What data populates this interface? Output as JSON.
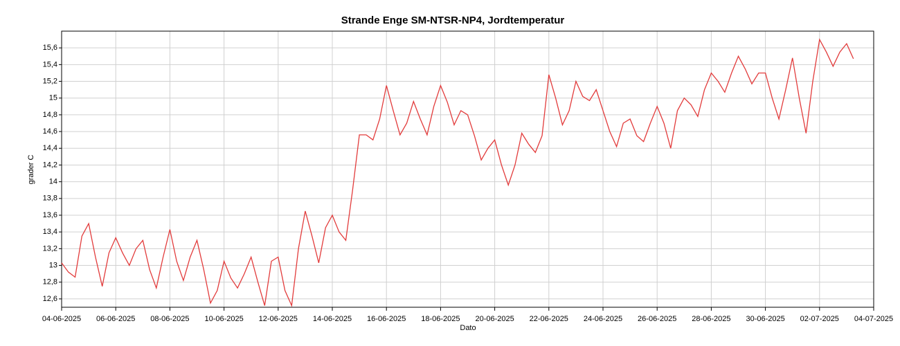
{
  "chart_data": {
    "type": "line",
    "title": "Strande Enge SM-NTSR-NP4, Jordtemperatur",
    "xlabel": "Dato",
    "ylabel": "grader C",
    "grid": true,
    "xlim": [
      "2025-06-04T00:00",
      "2025-07-04T00:00"
    ],
    "xticks": [
      {
        "value": "2025-06-04T00:00",
        "label": "04-06-2025"
      },
      {
        "value": "2025-06-06T00:00",
        "label": "06-06-2025"
      },
      {
        "value": "2025-06-08T00:00",
        "label": "08-06-2025"
      },
      {
        "value": "2025-06-10T00:00",
        "label": "10-06-2025"
      },
      {
        "value": "2025-06-12T00:00",
        "label": "12-06-2025"
      },
      {
        "value": "2025-06-14T00:00",
        "label": "14-06-2025"
      },
      {
        "value": "2025-06-16T00:00",
        "label": "16-06-2025"
      },
      {
        "value": "2025-06-18T00:00",
        "label": "18-06-2025"
      },
      {
        "value": "2025-06-20T00:00",
        "label": "20-06-2025"
      },
      {
        "value": "2025-06-22T00:00",
        "label": "22-06-2025"
      },
      {
        "value": "2025-06-24T00:00",
        "label": "24-06-2025"
      },
      {
        "value": "2025-06-26T00:00",
        "label": "26-06-2025"
      },
      {
        "value": "2025-06-28T00:00",
        "label": "28-06-2025"
      },
      {
        "value": "2025-06-30T00:00",
        "label": "30-06-2025"
      },
      {
        "value": "2025-07-02T00:00",
        "label": "02-07-2025"
      },
      {
        "value": "2025-07-04T00:00",
        "label": "04-07-2025"
      }
    ],
    "ylim": [
      12.5,
      15.8
    ],
    "yticks": [
      {
        "value": 12.6,
        "label": "12,6"
      },
      {
        "value": 12.8,
        "label": "12,8"
      },
      13,
      {
        "value": 13.2,
        "label": "13,2"
      },
      {
        "value": 13.4,
        "label": "13,4"
      },
      {
        "value": 13.6,
        "label": "13,6"
      },
      {
        "value": 13.8,
        "label": "13,8"
      },
      14,
      {
        "value": 14.2,
        "label": "14,2"
      },
      {
        "value": 14.4,
        "label": "14,4"
      },
      {
        "value": 14.6,
        "label": "14,6"
      },
      {
        "value": 14.8,
        "label": "14,8"
      },
      15,
      {
        "value": 15.2,
        "label": "15,2"
      },
      {
        "value": 15.4,
        "label": "15,4"
      },
      {
        "value": 15.6,
        "label": "15,6"
      }
    ],
    "x": [
      "2025-06-04T00:00",
      "2025-06-04T06:00",
      "2025-06-04T12:00",
      "2025-06-04T18:00",
      "2025-06-05T00:00",
      "2025-06-05T06:00",
      "2025-06-05T12:00",
      "2025-06-05T18:00",
      "2025-06-06T00:00",
      "2025-06-06T06:00",
      "2025-06-06T12:00",
      "2025-06-06T18:00",
      "2025-06-07T00:00",
      "2025-06-07T06:00",
      "2025-06-07T12:00",
      "2025-06-07T18:00",
      "2025-06-08T00:00",
      "2025-06-08T06:00",
      "2025-06-08T12:00",
      "2025-06-08T18:00",
      "2025-06-09T00:00",
      "2025-06-09T06:00",
      "2025-06-09T12:00",
      "2025-06-09T18:00",
      "2025-06-10T00:00",
      "2025-06-10T06:00",
      "2025-06-10T12:00",
      "2025-06-10T18:00",
      "2025-06-11T00:00",
      "2025-06-11T06:00",
      "2025-06-11T12:00",
      "2025-06-11T18:00",
      "2025-06-12T00:00",
      "2025-06-12T06:00",
      "2025-06-12T12:00",
      "2025-06-12T18:00",
      "2025-06-13T00:00",
      "2025-06-13T06:00",
      "2025-06-13T12:00",
      "2025-06-13T18:00",
      "2025-06-14T00:00",
      "2025-06-14T06:00",
      "2025-06-14T12:00",
      "2025-06-14T18:00",
      "2025-06-15T00:00",
      "2025-06-15T06:00",
      "2025-06-15T12:00",
      "2025-06-15T18:00",
      "2025-06-16T00:00",
      "2025-06-16T06:00",
      "2025-06-16T12:00",
      "2025-06-16T18:00",
      "2025-06-17T00:00",
      "2025-06-17T06:00",
      "2025-06-17T12:00",
      "2025-06-17T18:00",
      "2025-06-18T00:00",
      "2025-06-18T06:00",
      "2025-06-18T12:00",
      "2025-06-18T18:00",
      "2025-06-19T00:00",
      "2025-06-19T06:00",
      "2025-06-19T12:00",
      "2025-06-19T18:00",
      "2025-06-20T00:00",
      "2025-06-20T06:00",
      "2025-06-20T12:00",
      "2025-06-20T18:00",
      "2025-06-21T00:00",
      "2025-06-21T06:00",
      "2025-06-21T12:00",
      "2025-06-21T18:00",
      "2025-06-22T00:00",
      "2025-06-22T06:00",
      "2025-06-22T12:00",
      "2025-06-22T18:00",
      "2025-06-23T00:00",
      "2025-06-23T06:00",
      "2025-06-23T12:00",
      "2025-06-23T18:00",
      "2025-06-24T00:00",
      "2025-06-24T06:00",
      "2025-06-24T12:00",
      "2025-06-24T18:00",
      "2025-06-25T00:00",
      "2025-06-25T06:00",
      "2025-06-25T12:00",
      "2025-06-25T18:00",
      "2025-06-26T00:00",
      "2025-06-26T06:00",
      "2025-06-26T12:00",
      "2025-06-26T18:00",
      "2025-06-27T00:00",
      "2025-06-27T06:00",
      "2025-06-27T12:00",
      "2025-06-27T18:00",
      "2025-06-28T00:00",
      "2025-06-28T06:00",
      "2025-06-28T12:00",
      "2025-06-28T18:00",
      "2025-06-29T00:00",
      "2025-06-29T06:00",
      "2025-06-29T12:00",
      "2025-06-29T18:00",
      "2025-06-30T00:00",
      "2025-06-30T06:00",
      "2025-06-30T12:00",
      "2025-06-30T18:00",
      "2025-07-01T00:00",
      "2025-07-01T06:00",
      "2025-07-01T12:00",
      "2025-07-01T18:00",
      "2025-07-02T00:00",
      "2025-07-02T06:00",
      "2025-07-02T12:00",
      "2025-07-02T18:00",
      "2025-07-03T00:00",
      "2025-07-03T06:00"
    ],
    "series": [
      {
        "color": "#e23b3b",
        "values": [
          13.03,
          12.92,
          12.86,
          13.35,
          13.5,
          13.1,
          12.75,
          13.15,
          13.33,
          13.15,
          13.0,
          13.2,
          13.3,
          12.95,
          12.73,
          13.1,
          13.43,
          13.05,
          12.82,
          13.1,
          13.3,
          12.95,
          12.55,
          12.7,
          13.05,
          12.85,
          12.73,
          12.9,
          13.1,
          12.8,
          12.52,
          13.05,
          13.1,
          12.7,
          12.52,
          13.2,
          13.65,
          13.35,
          13.03,
          13.45,
          13.6,
          13.4,
          13.3,
          13.9,
          14.56,
          14.56,
          14.5,
          14.75,
          15.15,
          14.85,
          14.56,
          14.7,
          14.96,
          14.75,
          14.56,
          14.9,
          15.15,
          14.95,
          14.68,
          14.85,
          14.8,
          14.55,
          14.26,
          14.4,
          14.5,
          14.2,
          13.96,
          14.2,
          14.58,
          14.45,
          14.35,
          14.55,
          15.28,
          15.0,
          14.68,
          14.85,
          15.2,
          15.02,
          14.97,
          15.1,
          14.85,
          14.6,
          14.42,
          14.7,
          14.75,
          14.55,
          14.48,
          14.7,
          14.9,
          14.7,
          14.4,
          14.85,
          15.0,
          14.92,
          14.78,
          15.1,
          15.3,
          15.2,
          15.07,
          15.3,
          15.5,
          15.35,
          15.17,
          15.3,
          15.3,
          15.0,
          14.75,
          15.1,
          15.48,
          15.0,
          14.58,
          15.2,
          15.7,
          15.55,
          15.38,
          15.55,
          15.65,
          15.47
        ]
      }
    ]
  }
}
